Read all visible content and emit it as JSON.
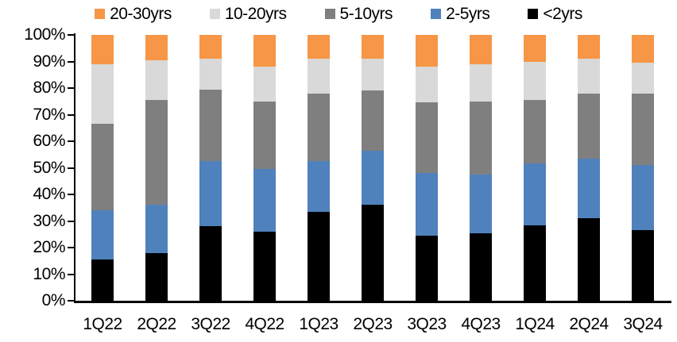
{
  "chart_data": {
    "type": "bar",
    "subtype": "stacked-100-percent",
    "title": "",
    "xlabel": "",
    "ylabel": "",
    "ylim": [
      0,
      100
    ],
    "grid": false,
    "legend_position": "top",
    "background_color": "#FFFFFF",
    "axis_color": "#000000",
    "categories": [
      "1Q22",
      "2Q22",
      "3Q22",
      "4Q22",
      "1Q23",
      "2Q23",
      "3Q23",
      "4Q23",
      "1Q24",
      "2Q24",
      "3Q24"
    ],
    "y_tick_labels": [
      "0%",
      "10%",
      "20%",
      "30%",
      "40%",
      "50%",
      "60%",
      "70%",
      "80%",
      "90%",
      "100%"
    ],
    "series": [
      {
        "name": "<2yrs",
        "color": "#000000",
        "values": [
          15.5,
          18,
          28,
          26,
          33.5,
          36,
          24.5,
          25.5,
          28.5,
          31,
          26.5
        ]
      },
      {
        "name": "2-5yrs",
        "color": "#4F81BD",
        "values": [
          18.5,
          18,
          24.5,
          23.5,
          19,
          20.5,
          23.5,
          22,
          23,
          22.5,
          24.5
        ]
      },
      {
        "name": "5-10yrs",
        "color": "#7F7F7F",
        "values": [
          32.5,
          39.5,
          27,
          25.5,
          25.5,
          22.5,
          26.5,
          27.5,
          24,
          24.5,
          27
        ]
      },
      {
        "name": "10-20yrs",
        "color": "#D9D9D9",
        "values": [
          22.5,
          15,
          11.5,
          13,
          13,
          12,
          13.5,
          14,
          14.5,
          13,
          11.5
        ]
      },
      {
        "name": "20-30yrs",
        "color": "#F79646",
        "values": [
          11,
          9.5,
          9,
          12,
          9,
          9,
          12,
          11,
          10,
          9,
          10.5
        ]
      }
    ],
    "legend": [
      {
        "label": "20-30yrs",
        "color": "#F79646"
      },
      {
        "label": "10-20yrs",
        "color": "#D9D9D9"
      },
      {
        "label": "5-10yrs",
        "color": "#7F7F7F"
      },
      {
        "label": "2-5yrs",
        "color": "#4F81BD"
      },
      {
        "label": "<2yrs",
        "color": "#000000"
      }
    ]
  }
}
